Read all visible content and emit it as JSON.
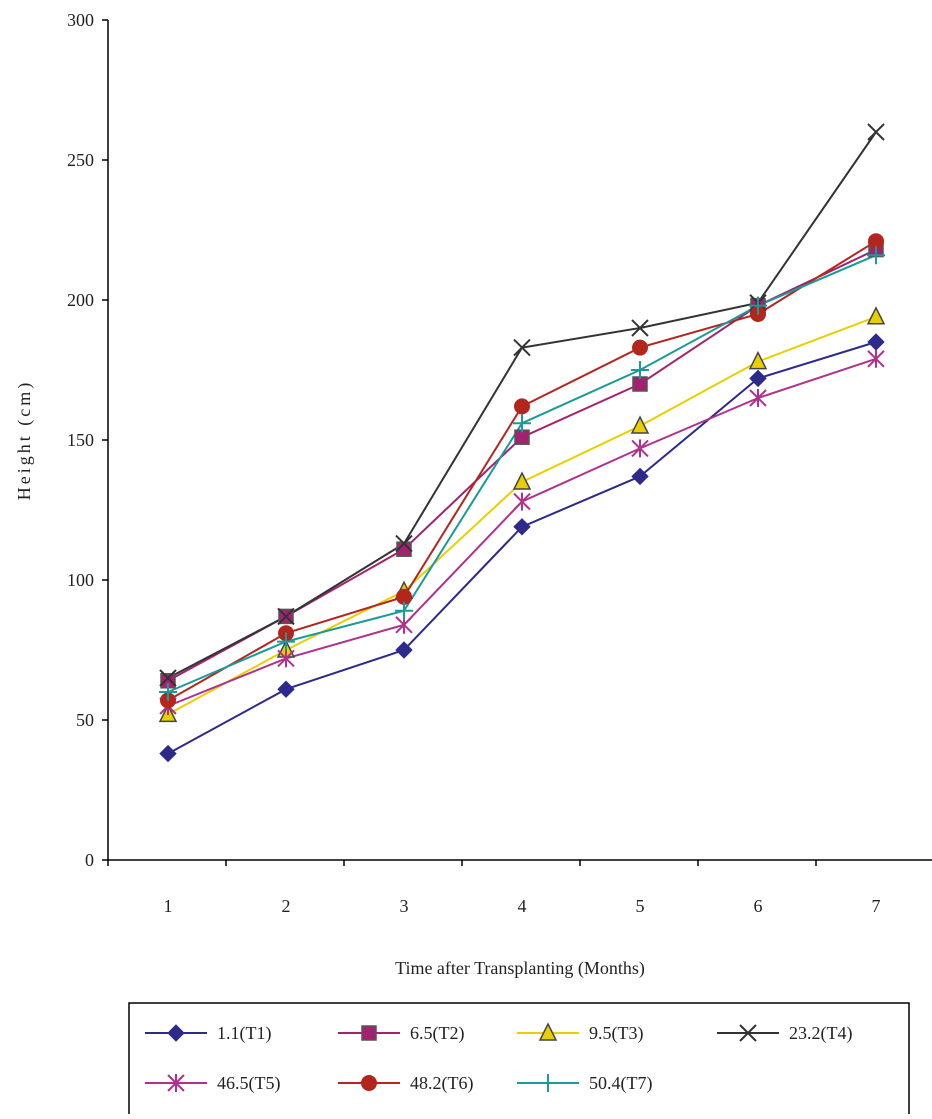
{
  "chart_data": {
    "type": "line",
    "title": "",
    "xlabel": "Time after Transplanting (Months)",
    "ylabel": "Height (cm)",
    "x": [
      1,
      2,
      3,
      4,
      5,
      6,
      7
    ],
    "x_tick_labels": [
      "1",
      "2",
      "3",
      "4",
      "5",
      "6",
      "7"
    ],
    "ylim": [
      0,
      300
    ],
    "y_ticks": [
      0,
      50,
      100,
      150,
      200,
      250,
      300
    ],
    "y_tick_labels": [
      "0",
      "50",
      "100",
      "150",
      "200",
      "250",
      "300"
    ],
    "grid": false,
    "legend_position": "bottom",
    "series": [
      {
        "name": "1.1(T1)",
        "color": "#2e2a8c",
        "marker": "diamond",
        "values": [
          38,
          61,
          75,
          119,
          137,
          172,
          185
        ]
      },
      {
        "name": "6.5(T2)",
        "color": "#a3216e",
        "marker": "square",
        "values": [
          64,
          87,
          111,
          151,
          170,
          198,
          218
        ]
      },
      {
        "name": "9.5(T3)",
        "color": "#e8d000",
        "marker": "triangle",
        "values": [
          52,
          75,
          96,
          135,
          155,
          178,
          194
        ]
      },
      {
        "name": "23.2(T4)",
        "color": "#333333",
        "marker": "x",
        "values": [
          65,
          87,
          113,
          183,
          190,
          199,
          260
        ]
      },
      {
        "name": "46.5(T5)",
        "color": "#b0308e",
        "marker": "star",
        "values": [
          55,
          72,
          84,
          128,
          147,
          165,
          179
        ]
      },
      {
        "name": "48.2(T6)",
        "color": "#b3261e",
        "marker": "circle",
        "values": [
          57,
          81,
          94,
          162,
          183,
          195,
          221
        ]
      },
      {
        "name": "50.4(T7)",
        "color": "#1a9a9a",
        "marker": "plus",
        "values": [
          60,
          78,
          89,
          156,
          175,
          198,
          216
        ]
      }
    ]
  }
}
